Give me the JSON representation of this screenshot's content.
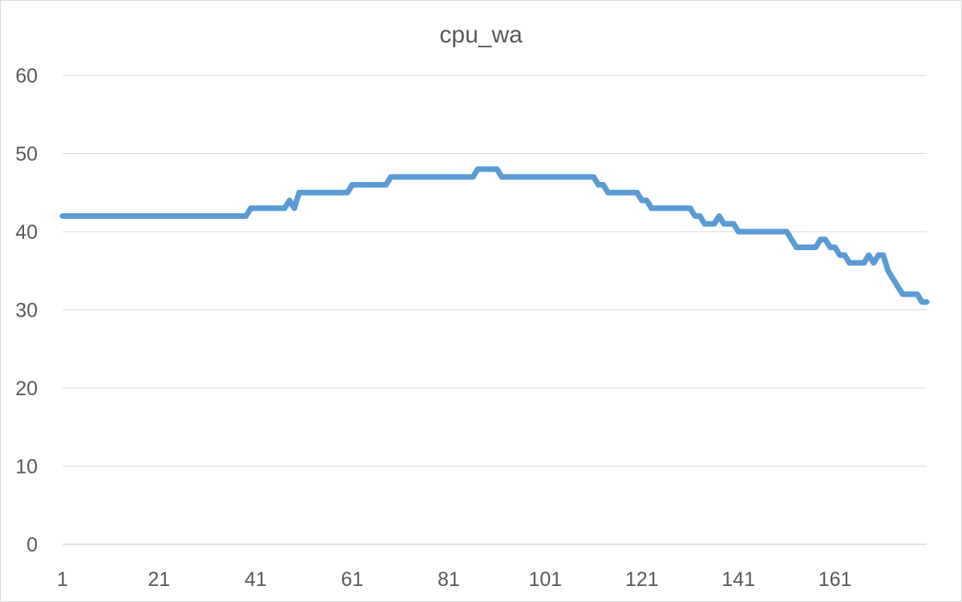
{
  "chart_data": {
    "type": "line",
    "title": "cpu_wa",
    "xlabel": "",
    "ylabel": "",
    "ylim": [
      0,
      60
    ],
    "y_ticks": [
      0,
      10,
      20,
      30,
      40,
      50,
      60
    ],
    "x_tick_labels": [
      "1",
      "21",
      "41",
      "61",
      "81",
      "101",
      "121",
      "141",
      "161"
    ],
    "x_range": [
      1,
      180
    ],
    "grid": "horizontal",
    "legend": "none",
    "colors": {
      "line": "#5b9bd5",
      "grid": "#d9d9d9",
      "axis": "#d9d9d9",
      "text": "#595959"
    },
    "series": [
      {
        "points": [
          [
            1,
            42
          ],
          [
            39,
            42
          ],
          [
            40,
            43
          ],
          [
            47,
            43
          ],
          [
            48,
            44
          ],
          [
            49,
            43
          ],
          [
            50,
            45
          ],
          [
            60,
            45
          ],
          [
            61,
            46
          ],
          [
            68,
            46
          ],
          [
            69,
            47
          ],
          [
            86,
            47
          ],
          [
            87,
            48
          ],
          [
            91,
            48
          ],
          [
            92,
            47
          ],
          [
            111,
            47
          ],
          [
            112,
            46
          ],
          [
            113,
            46
          ],
          [
            114,
            45
          ],
          [
            120,
            45
          ],
          [
            121,
            44
          ],
          [
            122,
            44
          ],
          [
            123,
            43
          ],
          [
            131,
            43
          ],
          [
            132,
            42
          ],
          [
            133,
            42
          ],
          [
            134,
            41
          ],
          [
            136,
            41
          ],
          [
            137,
            42
          ],
          [
            138,
            41
          ],
          [
            140,
            41
          ],
          [
            141,
            40
          ],
          [
            151,
            40
          ],
          [
            152,
            39
          ],
          [
            153,
            38
          ],
          [
            157,
            38
          ],
          [
            158,
            39
          ],
          [
            159,
            39
          ],
          [
            160,
            38
          ],
          [
            161,
            38
          ],
          [
            162,
            37
          ],
          [
            163,
            37
          ],
          [
            164,
            36
          ],
          [
            167,
            36
          ],
          [
            168,
            37
          ],
          [
            169,
            36
          ],
          [
            170,
            37
          ],
          [
            171,
            37
          ],
          [
            172,
            35
          ],
          [
            175,
            32
          ],
          [
            178,
            32
          ],
          [
            179,
            31
          ],
          [
            180,
            31
          ]
        ]
      }
    ]
  }
}
